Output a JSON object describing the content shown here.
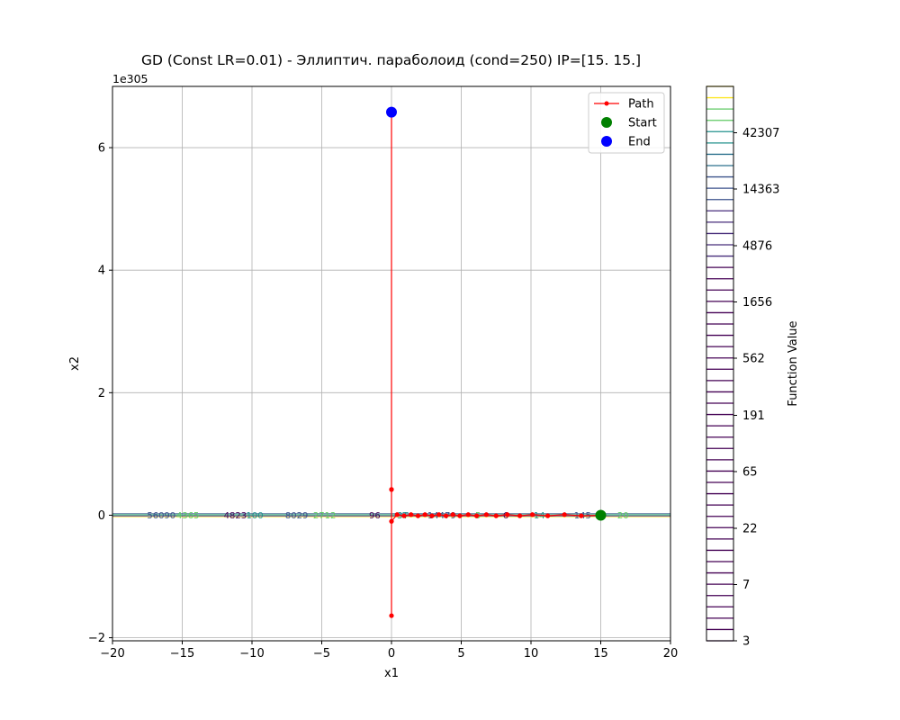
{
  "chart_data": {
    "type": "line",
    "title": "GD (Const LR=0.01) - Эллиптич. параболоид (cond=250) IP=[15. 15.]",
    "xlabel": "x1",
    "ylabel": "x2",
    "xlim": [
      -20,
      20
    ],
    "ylim": [
      -2.05,
      7.0
    ],
    "y_offset_text": "1e305",
    "x_ticks": [
      -20,
      -15,
      -10,
      -5,
      0,
      5,
      10,
      15,
      20
    ],
    "x_tick_labels": [
      "−20",
      "−15",
      "−10",
      "−5",
      "0",
      "5",
      "10",
      "15",
      "20"
    ],
    "y_ticks": [
      -2,
      0,
      2,
      4,
      6
    ],
    "y_tick_labels": [
      "−2",
      "0",
      "2",
      "4",
      "6"
    ],
    "grid": true,
    "legend": {
      "placement": "top-right",
      "entries": [
        {
          "label": "Path",
          "color": "#ff0000",
          "marker": "line-dot"
        },
        {
          "label": "Start",
          "color": "#008000",
          "marker": "circle"
        },
        {
          "label": "End",
          "color": "#0000ff",
          "marker": "circle"
        }
      ]
    },
    "series": [
      {
        "name": "Path",
        "color": "#ff0000",
        "x": [
          15,
          13.6,
          12.4,
          11.2,
          10.1,
          9.2,
          8.3,
          7.5,
          6.8,
          6.1,
          5.5,
          4.9,
          4.4,
          3.9,
          3.4,
          2.9,
          2.4,
          1.9,
          1.4,
          0.9,
          0.4,
          0,
          0,
          0,
          0,
          0
        ],
        "y": [
          0,
          -0.01,
          0.01,
          -0.01,
          0.01,
          -0.01,
          0.01,
          -0.01,
          0.01,
          -0.01,
          0.01,
          -0.01,
          0.01,
          -0.01,
          0.01,
          -0.01,
          0.01,
          -0.01,
          0.01,
          -0.01,
          0.01,
          -0.1,
          0.42,
          -1.64,
          0.42,
          6.58
        ]
      }
    ],
    "start": {
      "label": "Start",
      "x": 15,
      "y": 0,
      "color": "#008000"
    },
    "end": {
      "label": "End",
      "x": 0,
      "y": 6.58,
      "color": "#0000ff"
    },
    "colorbar": {
      "label": "Function Value",
      "tick_labels": [
        "3",
        "7",
        "22",
        "65",
        "191",
        "562",
        "1656",
        "4876",
        "14363",
        "42307"
      ]
    }
  }
}
